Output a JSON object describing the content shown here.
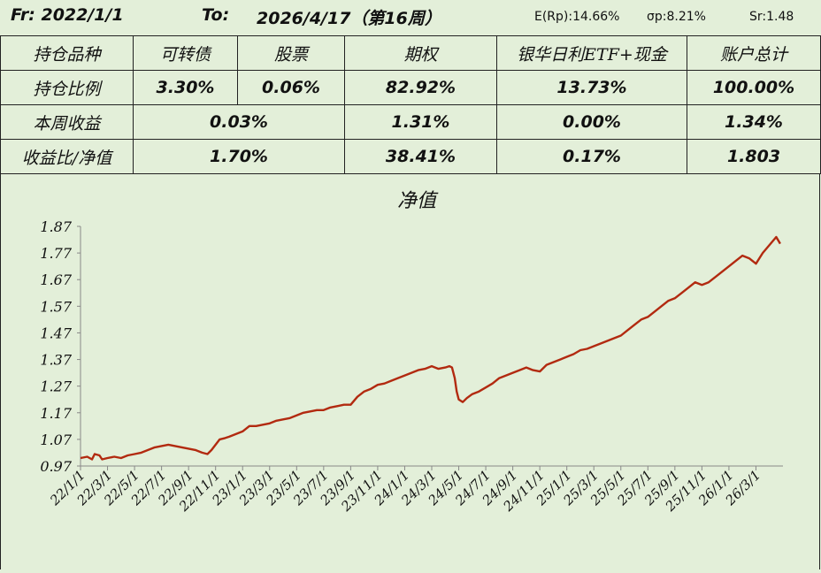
{
  "header": {
    "from_label": "Fr: 2022/1/1",
    "to_label": "To:",
    "to_date": "2026/4/17（第16周）",
    "stats": {
      "erp": "E(Rp):14.66%",
      "sigma": "σp:8.21%",
      "sr": "Sr:1.48"
    }
  },
  "table": {
    "headers": [
      "持仓品种",
      "可转债",
      "股票",
      "期权",
      "银华日利ETF+现金",
      "账户总计"
    ],
    "rows": [
      {
        "label": "持仓比例",
        "cb": "3.30%",
        "stock": "0.06%",
        "option": "82.92%",
        "etf_cash": "13.73%",
        "total": "100.00%"
      },
      {
        "label": "本周收益",
        "cb_stock": "0.03%",
        "option": "1.31%",
        "etf_cash": "0.00%",
        "total": "1.34%"
      },
      {
        "label": "收益比/净值",
        "cb_stock": "1.70%",
        "option": "38.41%",
        "etf_cash": "0.17%",
        "total": "1.803"
      }
    ],
    "colors": {
      "accent": "#a0521a"
    }
  },
  "chart_data": {
    "type": "line",
    "title": "净值",
    "xlabel": "",
    "ylabel": "",
    "ylim": [
      0.97,
      1.87
    ],
    "yticks": [
      "0.97",
      "1.07",
      "1.17",
      "1.27",
      "1.37",
      "1.47",
      "1.57",
      "1.67",
      "1.77",
      "1.87"
    ],
    "xticks": [
      "22/1/1",
      "22/3/1",
      "22/5/1",
      "22/7/1",
      "22/9/1",
      "22/11/1",
      "23/1/1",
      "23/3/1",
      "23/5/1",
      "23/7/1",
      "23/9/1",
      "23/11/1",
      "24/1/1",
      "24/3/1",
      "24/5/1",
      "24/7/1",
      "24/9/1",
      "24/11/1",
      "25/1/1",
      "25/3/1",
      "25/5/1",
      "25/7/1",
      "25/9/1",
      "25/11/1",
      "26/1/1",
      "26/3/1"
    ],
    "grid": false,
    "line_color": "#b22a10",
    "series": [
      {
        "values": [
          [
            0.0,
            1.0
          ],
          [
            0.5,
            1.005
          ],
          [
            0.85,
            0.995
          ],
          [
            1.05,
            1.015
          ],
          [
            1.4,
            1.01
          ],
          [
            1.6,
            0.995
          ],
          [
            2.0,
            1.0
          ],
          [
            2.5,
            1.005
          ],
          [
            3.0,
            1.0
          ],
          [
            3.5,
            1.01
          ],
          [
            4.0,
            1.015
          ],
          [
            4.5,
            1.02
          ],
          [
            5.0,
            1.03
          ],
          [
            5.5,
            1.04
          ],
          [
            6.0,
            1.045
          ],
          [
            6.5,
            1.05
          ],
          [
            7.0,
            1.045
          ],
          [
            7.5,
            1.04
          ],
          [
            8.0,
            1.035
          ],
          [
            8.5,
            1.03
          ],
          [
            9.0,
            1.02
          ],
          [
            9.4,
            1.015
          ],
          [
            9.7,
            1.03
          ],
          [
            10.0,
            1.05
          ],
          [
            10.3,
            1.07
          ],
          [
            10.7,
            1.075
          ],
          [
            11.0,
            1.08
          ],
          [
            11.5,
            1.09
          ],
          [
            12.0,
            1.1
          ],
          [
            12.5,
            1.12
          ],
          [
            13.0,
            1.12
          ],
          [
            13.5,
            1.125
          ],
          [
            14.0,
            1.13
          ],
          [
            14.5,
            1.14
          ],
          [
            15.0,
            1.145
          ],
          [
            15.5,
            1.15
          ],
          [
            16.0,
            1.16
          ],
          [
            16.5,
            1.17
          ],
          [
            17.0,
            1.175
          ],
          [
            17.5,
            1.18
          ],
          [
            18.0,
            1.18
          ],
          [
            18.5,
            1.19
          ],
          [
            19.0,
            1.195
          ],
          [
            19.5,
            1.2
          ],
          [
            20.0,
            1.2
          ],
          [
            20.5,
            1.23
          ],
          [
            21.0,
            1.25
          ],
          [
            21.5,
            1.26
          ],
          [
            22.0,
            1.275
          ],
          [
            22.5,
            1.28
          ],
          [
            23.0,
            1.29
          ],
          [
            23.5,
            1.3
          ],
          [
            24.0,
            1.31
          ],
          [
            24.5,
            1.32
          ],
          [
            25.0,
            1.33
          ],
          [
            25.5,
            1.335
          ],
          [
            26.0,
            1.345
          ],
          [
            26.5,
            1.335
          ],
          [
            27.0,
            1.34
          ],
          [
            27.3,
            1.345
          ],
          [
            27.5,
            1.34
          ],
          [
            27.7,
            1.3
          ],
          [
            27.85,
            1.25
          ],
          [
            28.0,
            1.22
          ],
          [
            28.3,
            1.21
          ],
          [
            28.6,
            1.225
          ],
          [
            29.0,
            1.24
          ],
          [
            29.5,
            1.25
          ],
          [
            30.0,
            1.265
          ],
          [
            30.5,
            1.28
          ],
          [
            31.0,
            1.3
          ],
          [
            31.5,
            1.31
          ],
          [
            32.0,
            1.32
          ],
          [
            32.5,
            1.33
          ],
          [
            33.0,
            1.34
          ],
          [
            33.5,
            1.33
          ],
          [
            34.0,
            1.325
          ],
          [
            34.5,
            1.35
          ],
          [
            35.0,
            1.36
          ],
          [
            35.5,
            1.37
          ],
          [
            36.0,
            1.38
          ],
          [
            36.5,
            1.39
          ],
          [
            37.0,
            1.405
          ],
          [
            37.5,
            1.41
          ],
          [
            38.0,
            1.42
          ],
          [
            38.5,
            1.43
          ],
          [
            39.0,
            1.44
          ],
          [
            39.5,
            1.45
          ],
          [
            40.0,
            1.46
          ],
          [
            40.5,
            1.48
          ],
          [
            41.0,
            1.5
          ],
          [
            41.5,
            1.52
          ],
          [
            42.0,
            1.53
          ],
          [
            42.5,
            1.55
          ],
          [
            43.0,
            1.57
          ],
          [
            43.5,
            1.59
          ],
          [
            44.0,
            1.6
          ],
          [
            44.5,
            1.62
          ],
          [
            45.0,
            1.64
          ],
          [
            45.5,
            1.66
          ],
          [
            46.0,
            1.65
          ],
          [
            46.5,
            1.66
          ],
          [
            47.0,
            1.68
          ],
          [
            47.5,
            1.7
          ],
          [
            48.0,
            1.72
          ],
          [
            48.5,
            1.74
          ],
          [
            49.0,
            1.76
          ],
          [
            49.5,
            1.75
          ],
          [
            50.0,
            1.73
          ],
          [
            50.5,
            1.77
          ],
          [
            51.0,
            1.8
          ],
          [
            51.5,
            1.83
          ],
          [
            51.8,
            1.805
          ]
        ]
      }
    ]
  }
}
